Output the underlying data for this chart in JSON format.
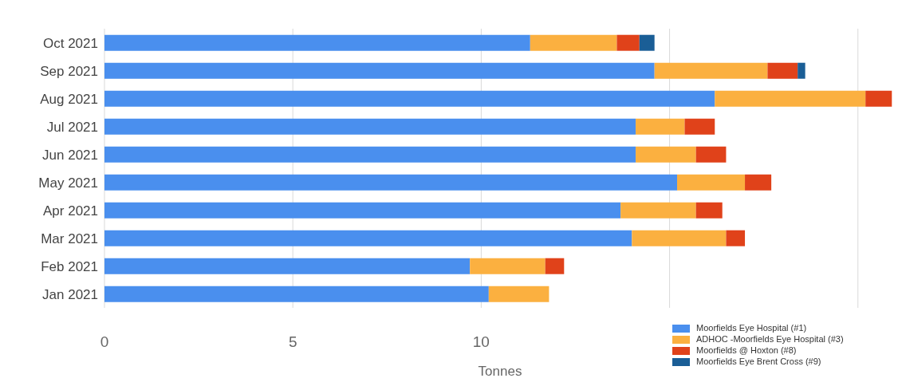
{
  "chart_data": {
    "type": "bar",
    "orientation": "horizontal",
    "stacked": true,
    "xlabel": "Tonnes",
    "categories": [
      "Oct 2021",
      "Sep 2021",
      "Aug 2021",
      "Jul 2021",
      "Jun 2021",
      "May 2021",
      "Apr 2021",
      "Mar 2021",
      "Feb 2021",
      "Jan 2021"
    ],
    "series": [
      {
        "name": "Moorfields Eye Hospital (#1)",
        "color": "#4a8fee",
        "values": [
          11.3,
          14.6,
          16.2,
          14.1,
          14.1,
          15.2,
          13.7,
          14.0,
          9.7,
          10.2
        ]
      },
      {
        "name": "ADHOC -Moorfields Eye Hospital (#3)",
        "color": "#fbb040",
        "values": [
          2.3,
          3.0,
          4.0,
          1.3,
          1.6,
          1.8,
          2.0,
          2.5,
          2.0,
          1.6
        ]
      },
      {
        "name": "Moorfields @ Hoxton (#8)",
        "color": "#e0421a",
        "values": [
          0.6,
          0.8,
          0.7,
          0.8,
          0.8,
          0.7,
          0.7,
          0.5,
          0.5,
          null
        ]
      },
      {
        "name": "Moorfields Eye Brent Cross (#9)",
        "color": "#1a5e96",
        "values": [
          0.4,
          0.2,
          null,
          null,
          null,
          null,
          null,
          null,
          null,
          null
        ]
      }
    ],
    "xlim": [
      0,
      21
    ],
    "xticks": [
      0,
      5,
      10,
      {
        "value": 15,
        "label": null
      },
      {
        "value": 20,
        "label": null
      }
    ],
    "grid": "x",
    "legend": "bottom right"
  }
}
